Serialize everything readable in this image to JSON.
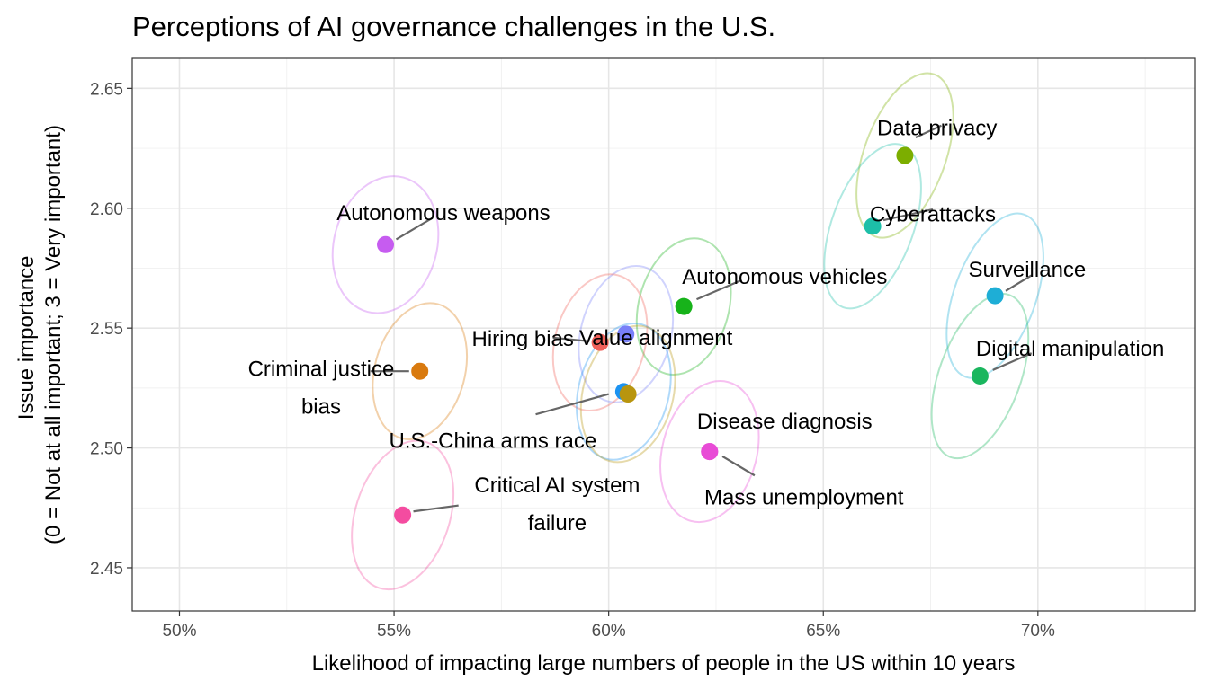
{
  "chart_data": {
    "type": "scatter",
    "title": "Perceptions of AI governance challenges in the U.S.",
    "xlabel": "Likelihood of impacting large numbers of people in the US within 10 years",
    "ylabel_lines": [
      "Issue importance",
      "(0 = Not at all important; 3 = Very important)"
    ],
    "xlim": [
      0.489,
      0.7365
    ],
    "ylim": [
      2.432,
      2.6625
    ],
    "x_ticks": [
      0.5,
      0.55,
      0.6,
      0.65,
      0.7
    ],
    "x_tick_labels": [
      "50%",
      "55%",
      "60%",
      "65%",
      "70%"
    ],
    "y_ticks": [
      2.45,
      2.5,
      2.55,
      2.6,
      2.65
    ],
    "y_tick_labels": [
      "2.45",
      "2.50",
      "2.55",
      "2.60",
      "2.65"
    ],
    "grid": true,
    "legend": "none",
    "points": [
      {
        "label": "Data privacy",
        "x": 0.669,
        "y": 2.622,
        "color": "#7CAE00",
        "ell": {
          "rx": 0.0095,
          "ry": 0.036,
          "rot": 20
        }
      },
      {
        "label": "Cyberattacks",
        "x": 0.6615,
        "y": 2.5925,
        "color": "#1DBFA8",
        "ell": {
          "rx": 0.0095,
          "ry": 0.036,
          "rot": 20
        }
      },
      {
        "label": "Surveillance",
        "x": 0.69,
        "y": 2.5635,
        "color": "#1EAED6",
        "ell": {
          "rx": 0.0095,
          "ry": 0.036,
          "rot": 20
        }
      },
      {
        "label": "Digital manipulation",
        "x": 0.6865,
        "y": 2.53,
        "color": "#1AB65E",
        "ell": {
          "rx": 0.0095,
          "ry": 0.036,
          "rot": 20
        }
      },
      {
        "label": "Autonomous weapons",
        "x": 0.548,
        "y": 2.5848,
        "color": "#C65CF0",
        "ell": {
          "rx": 0.012,
          "ry": 0.029,
          "rot": 15
        }
      },
      {
        "label": "Autonomous vehicles",
        "x": 0.6175,
        "y": 2.559,
        "color": "#17B31A",
        "ell": {
          "rx": 0.0105,
          "ry": 0.029,
          "rot": 15
        }
      },
      {
        "label": "Value alignment",
        "x": 0.604,
        "y": 2.5475,
        "color": "#7880F8",
        "ell": {
          "rx": 0.0105,
          "ry": 0.029,
          "rot": 15
        }
      },
      {
        "label": "Hiring bias",
        "x": 0.598,
        "y": 2.544,
        "color": "#F0615A",
        "ell": {
          "rx": 0.0105,
          "ry": 0.029,
          "rot": 15
        }
      },
      {
        "label": "Criminal justice bias",
        "x": 0.556,
        "y": 2.532,
        "color": "#D97A0F",
        "ell": {
          "rx": 0.0105,
          "ry": 0.029,
          "rot": 15
        }
      },
      {
        "label": "U.S.-China arms race",
        "x": 0.6035,
        "y": 2.5235,
        "color": "#1B93F2",
        "ell": {
          "rx": 0.0105,
          "ry": 0.029,
          "rot": 15
        }
      },
      {
        "label": "",
        "x": 0.6045,
        "y": 2.5225,
        "color": "#B8950F",
        "ell": {
          "rx": 0.0105,
          "ry": 0.029,
          "rot": 15
        }
      },
      {
        "label": "Disease diagnosis",
        "x": 0.6235,
        "y": 2.4985,
        "color": "#E84BD6",
        "ell": {
          "rx": 0.011,
          "ry": 0.03,
          "rot": 15
        }
      },
      {
        "label": "Mass unemployment",
        "x": 0.6235,
        "y": 2.4985,
        "color": "#E84BD6",
        "ell": null
      },
      {
        "label": "Critical AI system failure",
        "x": 0.552,
        "y": 2.472,
        "color": "#F44CA0",
        "ell": {
          "rx": 0.011,
          "ry": 0.032,
          "rot": 18
        }
      }
    ],
    "labels": [
      {
        "lines": [
          "Data privacy"
        ],
        "x": 0.6765,
        "y": 2.6335,
        "anchor": "middle",
        "leader": [
          [
            0.6715,
            2.6295
          ],
          [
            0.6775,
            2.6345
          ]
        ]
      },
      {
        "lines": [
          "Cyberattacks"
        ],
        "x": 0.6755,
        "y": 2.5975,
        "anchor": "middle",
        "leader": [
          [
            0.664,
            2.595
          ],
          [
            0.6755,
            2.5995
          ]
        ]
      },
      {
        "lines": [
          "Surveillance"
        ],
        "x": 0.6975,
        "y": 2.5745,
        "anchor": "middle",
        "leader": [
          [
            0.6925,
            2.5655
          ],
          [
            0.6985,
            2.572
          ]
        ]
      },
      {
        "lines": [
          "Digital manipulation"
        ],
        "x": 0.7075,
        "y": 2.5415,
        "anchor": "middle",
        "leader": [
          [
            0.6895,
            2.5325
          ],
          [
            0.6985,
            2.5395
          ]
        ]
      },
      {
        "lines": [
          "Autonomous weapons"
        ],
        "x": 0.5615,
        "y": 2.598,
        "anchor": "middle",
        "leader": [
          [
            0.5505,
            2.587
          ],
          [
            0.559,
            2.596
          ]
        ]
      },
      {
        "lines": [
          "Autonomous vehicles"
        ],
        "x": 0.641,
        "y": 2.5715,
        "anchor": "middle",
        "leader": [
          [
            0.6205,
            2.562
          ],
          [
            0.631,
            2.57
          ]
        ]
      },
      {
        "lines": [
          "Value alignment"
        ],
        "x": 0.611,
        "y": 2.546,
        "anchor": "middle",
        "leader": null
      },
      {
        "lines": [
          "Hiring bias"
        ],
        "x": 0.58,
        "y": 2.5455,
        "anchor": "middle",
        "leader": [
          [
            0.587,
            2.546
          ],
          [
            0.5955,
            2.5445
          ]
        ]
      },
      {
        "lines": [
          "Criminal justice",
          "bias"
        ],
        "x": 0.533,
        "y": 2.533,
        "anchor": "middle",
        "leader": [
          [
            0.5445,
            2.532
          ],
          [
            0.5535,
            2.532
          ]
        ]
      },
      {
        "lines": [
          "U.S.-China arms race"
        ],
        "x": 0.573,
        "y": 2.503,
        "anchor": "middle",
        "leader": [
          [
            0.583,
            2.514
          ],
          [
            0.6,
            2.5225
          ]
        ]
      },
      {
        "lines": [
          "Disease diagnosis"
        ],
        "x": 0.641,
        "y": 2.511,
        "anchor": "middle",
        "leader": null
      },
      {
        "lines": [
          "Mass unemployment"
        ],
        "x": 0.6455,
        "y": 2.4795,
        "anchor": "middle",
        "leader": [
          [
            0.6265,
            2.4965
          ],
          [
            0.634,
            2.4885
          ]
        ]
      },
      {
        "lines": [
          "Critical AI system",
          "failure"
        ],
        "x": 0.588,
        "y": 2.4845,
        "anchor": "middle",
        "leader": [
          [
            0.5545,
            2.4735
          ],
          [
            0.565,
            2.476
          ]
        ]
      }
    ]
  }
}
